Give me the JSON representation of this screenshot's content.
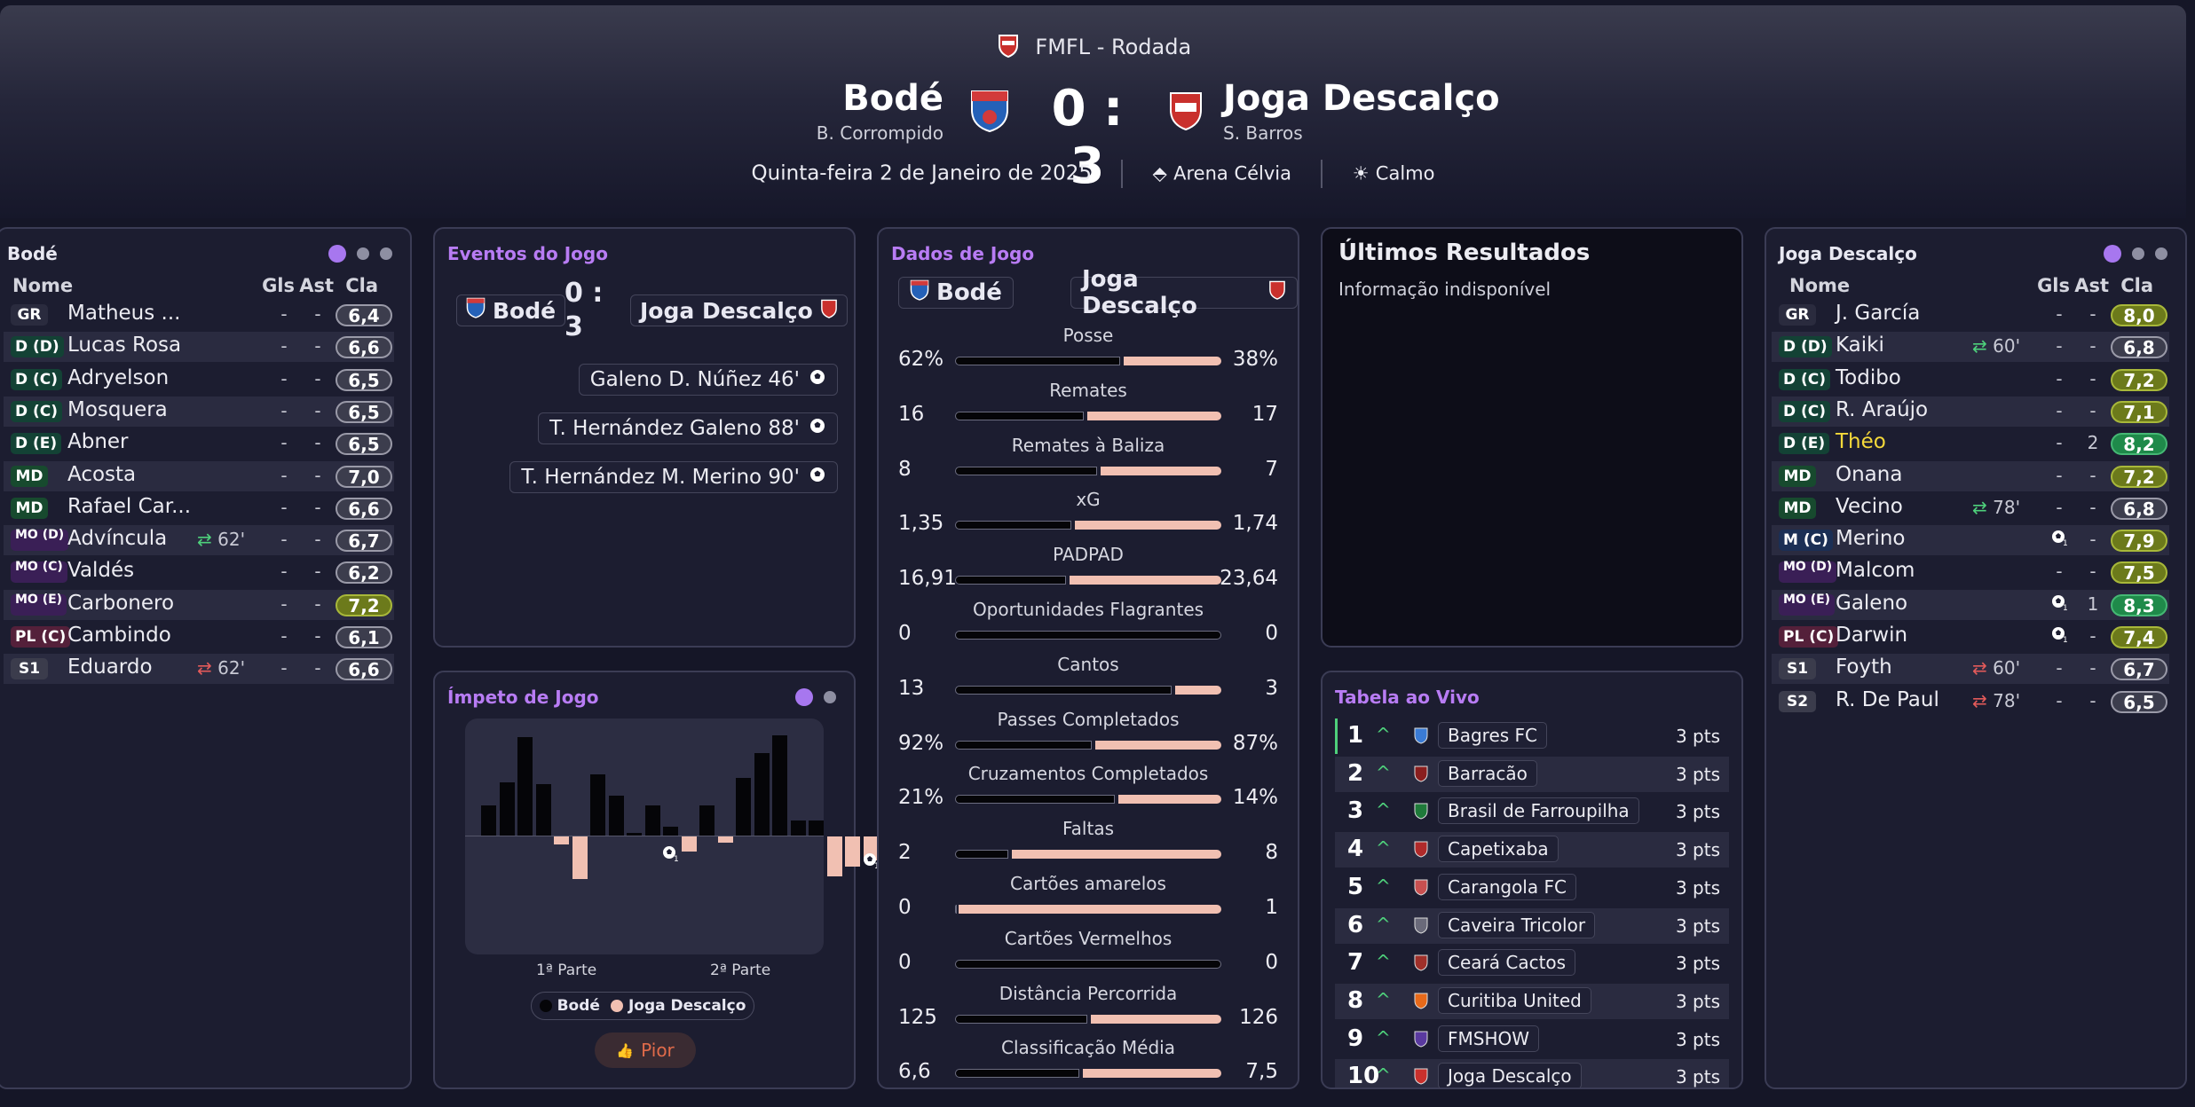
{
  "header": {
    "competition": "FMFL - Rodada",
    "home": {
      "name": "Bodé",
      "manager": "B. Corrompido"
    },
    "away": {
      "name": "Joga Descalço",
      "manager": "S. Barros"
    },
    "score": "0 : 3",
    "date": "Quinta-feira 2 de Janeiro de 2025",
    "stadium": "Arena Célvia",
    "weather": "Calmo"
  },
  "home_lineup": {
    "title": "Bodé",
    "headers": {
      "name": "Nome",
      "gls": "Gls",
      "ast": "Ast",
      "cla": "Cla"
    },
    "players": [
      {
        "pos": "GR",
        "name": "Matheus ...",
        "sub": "",
        "gls": "-",
        "ast": "-",
        "rating": "6,4",
        "tier": "plain"
      },
      {
        "pos": "D (D)",
        "name": "Lucas Rosa",
        "sub": "",
        "gls": "-",
        "ast": "-",
        "rating": "6,6",
        "tier": "plain"
      },
      {
        "pos": "D (C)",
        "name": "Adryelson",
        "sub": "",
        "gls": "-",
        "ast": "-",
        "rating": "6,5",
        "tier": "plain"
      },
      {
        "pos": "D (C)",
        "name": "Mosquera",
        "sub": "",
        "gls": "-",
        "ast": "-",
        "rating": "6,5",
        "tier": "plain"
      },
      {
        "pos": "D (E)",
        "name": "Abner",
        "sub": "",
        "gls": "-",
        "ast": "-",
        "rating": "6,5",
        "tier": "plain"
      },
      {
        "pos": "MD",
        "name": "Acosta",
        "sub": "",
        "gls": "-",
        "ast": "-",
        "rating": "7,0",
        "tier": "plain"
      },
      {
        "pos": "MD",
        "name": "Rafael Car...",
        "sub": "",
        "gls": "-",
        "ast": "-",
        "rating": "6,6",
        "tier": "plain"
      },
      {
        "pos": "MO (D)",
        "name": "Advíncula",
        "sub": "62'",
        "subdir": "off",
        "gls": "-",
        "ast": "-",
        "rating": "6,7",
        "tier": "plain"
      },
      {
        "pos": "MO (C)",
        "name": "Valdés",
        "sub": "",
        "gls": "-",
        "ast": "-",
        "rating": "6,2",
        "tier": "plain"
      },
      {
        "pos": "MO (E)",
        "name": "Carbonero",
        "sub": "",
        "gls": "-",
        "ast": "-",
        "rating": "7,2",
        "tier": "ok"
      },
      {
        "pos": "PL (C)",
        "name": "Cambindo",
        "sub": "",
        "gls": "-",
        "ast": "-",
        "rating": "6,1",
        "tier": "plain"
      },
      {
        "pos": "S1",
        "name": "Eduardo",
        "sub": "62'",
        "subdir": "on",
        "gls": "-",
        "ast": "-",
        "rating": "6,6",
        "tier": "plain"
      }
    ]
  },
  "away_lineup": {
    "title": "Joga Descalço",
    "headers": {
      "name": "Nome",
      "gls": "Gls",
      "ast": "Ast",
      "cla": "Cla"
    },
    "players": [
      {
        "pos": "GR",
        "name": "J. García",
        "sub": "",
        "gls": "-",
        "ast": "-",
        "rating": "8,0",
        "tier": "ok"
      },
      {
        "pos": "D (D)",
        "name": "Kaiki",
        "sub": "60'",
        "subdir": "off",
        "gls": "-",
        "ast": "-",
        "rating": "6,8",
        "tier": "plain"
      },
      {
        "pos": "D (C)",
        "name": "Todibo",
        "sub": "",
        "gls": "-",
        "ast": "-",
        "rating": "7,2",
        "tier": "ok"
      },
      {
        "pos": "D (C)",
        "name": "R. Araújo",
        "sub": "",
        "gls": "-",
        "ast": "-",
        "rating": "7,1",
        "tier": "ok"
      },
      {
        "pos": "D (E)",
        "name": "Théo",
        "sub": "",
        "gls": "-",
        "ast": "2",
        "rating": "8,2",
        "tier": "good",
        "star": true
      },
      {
        "pos": "MD",
        "name": "Onana",
        "sub": "",
        "gls": "-",
        "ast": "-",
        "rating": "7,2",
        "tier": "ok"
      },
      {
        "pos": "MD",
        "name": "Vecino",
        "sub": "78'",
        "subdir": "off",
        "gls": "-",
        "ast": "-",
        "rating": "6,8",
        "tier": "plain"
      },
      {
        "pos": "M (C)",
        "name": "Merino",
        "sub": "",
        "gls": "ball",
        "ast": "-",
        "rating": "7,9",
        "tier": "ok"
      },
      {
        "pos": "MO (D)",
        "name": "Malcom",
        "sub": "",
        "gls": "-",
        "ast": "-",
        "rating": "7,5",
        "tier": "ok"
      },
      {
        "pos": "MO (E)",
        "name": "Galeno",
        "sub": "",
        "gls": "ball",
        "ast": "1",
        "rating": "8,3",
        "tier": "good"
      },
      {
        "pos": "PL (C)",
        "name": "Darwin",
        "sub": "",
        "gls": "ball",
        "ast": "-",
        "rating": "7,4",
        "tier": "ok"
      },
      {
        "pos": "S1",
        "name": "Foyth",
        "sub": "60'",
        "subdir": "on",
        "gls": "-",
        "ast": "-",
        "rating": "6,7",
        "tier": "plain"
      },
      {
        "pos": "S2",
        "name": "R. De Paul",
        "sub": "78'",
        "subdir": "on",
        "gls": "-",
        "ast": "-",
        "rating": "6,5",
        "tier": "plain"
      }
    ]
  },
  "events": {
    "title": "Eventos do Jogo",
    "home": "Bodé",
    "away": "Joga Descalço",
    "score_top": "0 :",
    "score_bottom": "3",
    "items": [
      "Galeno D. Núñez 46'",
      "T. Hernández Galeno 88'",
      "T. Hernández M. Merino 90'"
    ]
  },
  "momentum": {
    "title": "Ímpeto de Jogo",
    "first_half": "1ª Parte",
    "second_half": "2ª Parte",
    "legend_home": "Bodé",
    "legend_away": "Joga Descalço",
    "button": "Pior",
    "bars": [
      20,
      35,
      65,
      34,
      -5,
      -28,
      40,
      26,
      2,
      20,
      6,
      -10,
      20,
      -4,
      38,
      54,
      66,
      10,
      10,
      -26,
      -20,
      -16,
      -4
    ],
    "home_color": "#050508",
    "away_color": "#f1c0b2"
  },
  "stats": {
    "title": "Dados de Jogo",
    "home": "Bodé",
    "away": "Joga Descalço",
    "rows": [
      {
        "label": "Posse",
        "home": "62%",
        "away": "38%",
        "h": 62,
        "a": 38
      },
      {
        "label": "Remates",
        "home": "16",
        "away": "17",
        "h": 16,
        "a": 17
      },
      {
        "label": "Remates à Baliza",
        "home": "8",
        "away": "7",
        "h": 8,
        "a": 7
      },
      {
        "label": "xG",
        "home": "1,35",
        "away": "1,74",
        "h": 1.35,
        "a": 1.74
      },
      {
        "label": "PADPAD",
        "home": "16,91",
        "away": "23,64",
        "h": 16.91,
        "a": 23.64
      },
      {
        "label": "Oportunidades Flagrantes",
        "home": "0",
        "away": "0",
        "h": 0,
        "a": 0
      },
      {
        "label": "Cantos",
        "home": "13",
        "away": "3",
        "h": 13,
        "a": 3
      },
      {
        "label": "Passes Completados",
        "home": "92%",
        "away": "87%",
        "h": 92,
        "a": 87
      },
      {
        "label": "Cruzamentos Completados",
        "home": "21%",
        "away": "14%",
        "h": 21,
        "a": 14
      },
      {
        "label": "Faltas",
        "home": "2",
        "away": "8",
        "h": 2,
        "a": 8
      },
      {
        "label": "Cartões amarelos",
        "home": "0",
        "away": "1",
        "h": 0,
        "a": 1
      },
      {
        "label": "Cartões Vermelhos",
        "home": "0",
        "away": "0",
        "h": 0,
        "a": 0
      },
      {
        "label": "Distância Percorrida",
        "home": "125",
        "away": "126",
        "h": 125,
        "a": 126
      },
      {
        "label": "Classificação Média",
        "home": "6,6",
        "away": "7,5",
        "h": 6.6,
        "a": 7.5
      }
    ]
  },
  "results": {
    "title": "Últimos Resultados",
    "message": "Informação indisponível"
  },
  "live_table": {
    "title": "Tabela ao Vivo",
    "rows": [
      {
        "pos": "1",
        "name": "Bagres FC",
        "pts": "3 pts"
      },
      {
        "pos": "2",
        "name": "Barracão",
        "pts": "3 pts"
      },
      {
        "pos": "3",
        "name": "Brasil de Farroupilha",
        "pts": "3 pts"
      },
      {
        "pos": "4",
        "name": "Capetixaba",
        "pts": "3 pts"
      },
      {
        "pos": "5",
        "name": "Carangola FC",
        "pts": "3 pts"
      },
      {
        "pos": "6",
        "name": "Caveira Tricolor",
        "pts": "3 pts"
      },
      {
        "pos": "7",
        "name": "Ceará Cactos",
        "pts": "3 pts"
      },
      {
        "pos": "8",
        "name": "Curitiba United",
        "pts": "3 pts"
      },
      {
        "pos": "9",
        "name": "FMSHOW",
        "pts": "3 pts"
      },
      {
        "pos": "10",
        "name": "Joga Descalço",
        "pts": "3 pts"
      }
    ]
  }
}
